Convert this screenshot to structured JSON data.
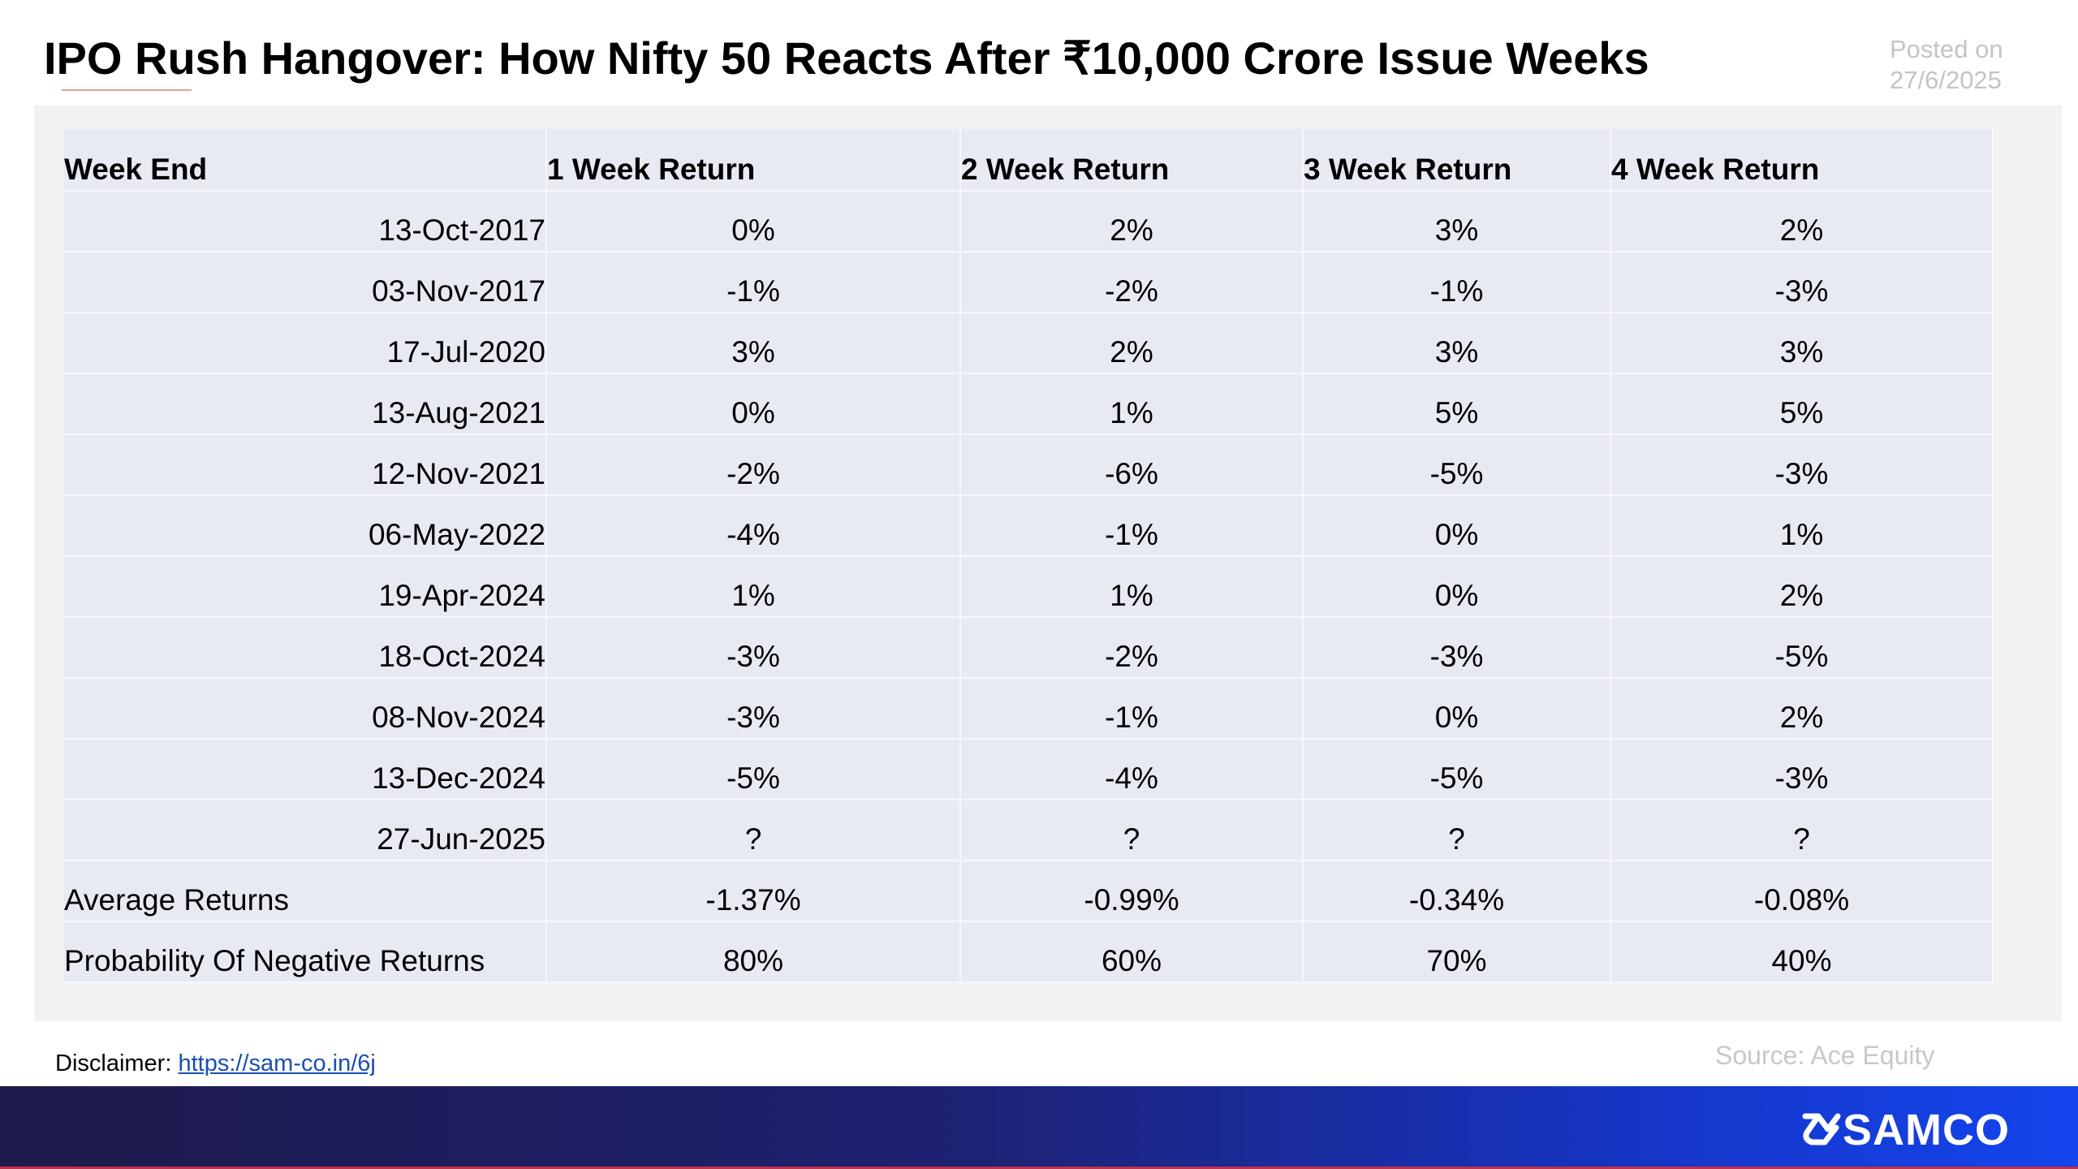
{
  "header": {
    "title": "IPO Rush Hangover: How Nifty 50 Reacts After ₹10,000 Crore Issue Weeks",
    "posted_label": "Posted on",
    "posted_date": "27/6/2025"
  },
  "table": {
    "columns": [
      "Week End",
      "1 Week Return",
      "2 Week Return",
      "3 Week Return",
      "4 Week Return"
    ],
    "rows": [
      {
        "week_end": "13-Oct-2017",
        "w1": "0%",
        "w2": "2%",
        "w3": "3%",
        "w4": "2%"
      },
      {
        "week_end": "03-Nov-2017",
        "w1": "-1%",
        "w2": "-2%",
        "w3": "-1%",
        "w4": "-3%"
      },
      {
        "week_end": "17-Jul-2020",
        "w1": "3%",
        "w2": "2%",
        "w3": "3%",
        "w4": "3%"
      },
      {
        "week_end": "13-Aug-2021",
        "w1": "0%",
        "w2": "1%",
        "w3": "5%",
        "w4": "5%"
      },
      {
        "week_end": "12-Nov-2021",
        "w1": "-2%",
        "w2": "-6%",
        "w3": "-5%",
        "w4": "-3%"
      },
      {
        "week_end": "06-May-2022",
        "w1": "-4%",
        "w2": "-1%",
        "w3": "0%",
        "w4": "1%"
      },
      {
        "week_end": "19-Apr-2024",
        "w1": "1%",
        "w2": "1%",
        "w3": "0%",
        "w4": "2%"
      },
      {
        "week_end": "18-Oct-2024",
        "w1": "-3%",
        "w2": "-2%",
        "w3": "-3%",
        "w4": "-5%"
      },
      {
        "week_end": "08-Nov-2024",
        "w1": "-3%",
        "w2": "-1%",
        "w3": "0%",
        "w4": "2%"
      },
      {
        "week_end": "13-Dec-2024",
        "w1": "-5%",
        "w2": "-4%",
        "w3": "-5%",
        "w4": "-3%"
      },
      {
        "week_end": "27-Jun-2025",
        "w1": "?",
        "w2": "?",
        "w3": "?",
        "w4": "?"
      }
    ],
    "summary": [
      {
        "label": "Average Returns",
        "w1": "-1.37%",
        "w2": "-0.99%",
        "w3": "-0.34%",
        "w4": "-0.08%"
      },
      {
        "label": "Probability Of Negative Returns",
        "w1": "80%",
        "w2": "60%",
        "w3": "70%",
        "w4": "40%"
      }
    ]
  },
  "footer": {
    "disclaimer_label": "Disclaimer:",
    "disclaimer_link": "https://sam-co.in/6j",
    "source": "Source: Ace Equity",
    "brand": "SAMCO",
    "logo_icon": "samco-swirl-icon"
  },
  "colors": {
    "table_bg": "#e8eaf3",
    "panel_bg": "#f2f2f2",
    "footer_start": "#1e1a4a",
    "footer_end": "#1445ee",
    "muted_text": "#c4c4c4"
  }
}
